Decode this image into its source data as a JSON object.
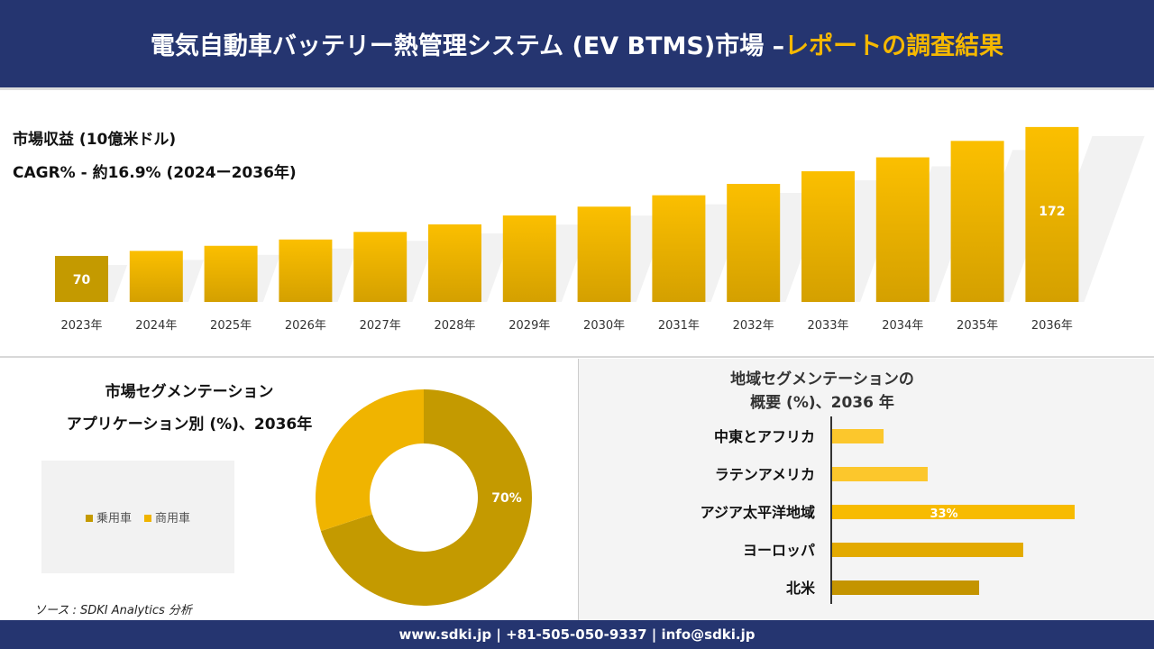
{
  "header": {
    "title_main": "電気自動車バッテリー熱管理システム (EV BTMS)市場 –",
    "title_highlight": "レポートの調査結果"
  },
  "colors": {
    "navy": "#253570",
    "gold_dark": "#c49a00",
    "gold": "#f0b400",
    "gold_light": "#fcc72c"
  },
  "revenue": {
    "label": "市場収益 (10億米ドル)",
    "cagr": "CAGR% - 約16.9% (2024ー2036年)"
  },
  "chart_data": [
    {
      "type": "bar",
      "categories": [
        "2023年",
        "2024年",
        "2025年",
        "2026年",
        "2027年",
        "2028年",
        "2029年",
        "2030年",
        "2031年",
        "2032年",
        "2033年",
        "2034年",
        "2035年",
        "2036年"
      ],
      "values": [
        70,
        74,
        78,
        83,
        89,
        95,
        102,
        109,
        118,
        127,
        137,
        148,
        161,
        172
      ],
      "data_labels": {
        "2023年": "70",
        "2036年": "172"
      }
    },
    {
      "type": "pie",
      "title": "市場セグメンテーション アプリケーション別 (%)、2036年",
      "title_line1": "市場セグメンテーション",
      "title_line2": "アプリケーション別 (%)、2036年",
      "categories": [
        "乗用車",
        "商用車"
      ],
      "values": [
        70,
        30
      ],
      "data_label": "70%",
      "colors": [
        "#c49a00",
        "#f0b400"
      ]
    },
    {
      "type": "bar",
      "orientation": "horizontal",
      "title_line1": "地域セグメンテーションの",
      "title_line2": "概要 (%)、2036 年",
      "categories": [
        "中東とアフリカ",
        "ラテンアメリカ",
        "アジア太平洋地域",
        "ヨーロッパ",
        "北米"
      ],
      "values": [
        7,
        13,
        33,
        26,
        20
      ],
      "data_label": "33%",
      "colors": [
        "#fcc72c",
        "#fcc72c",
        "#f7bb00",
        "#e3aa00",
        "#c49400"
      ]
    }
  ],
  "source": "ソース : SDKI Analytics 分析",
  "footer": "www.sdki.jp | +81-505-050-9337 | info@sdki.jp"
}
